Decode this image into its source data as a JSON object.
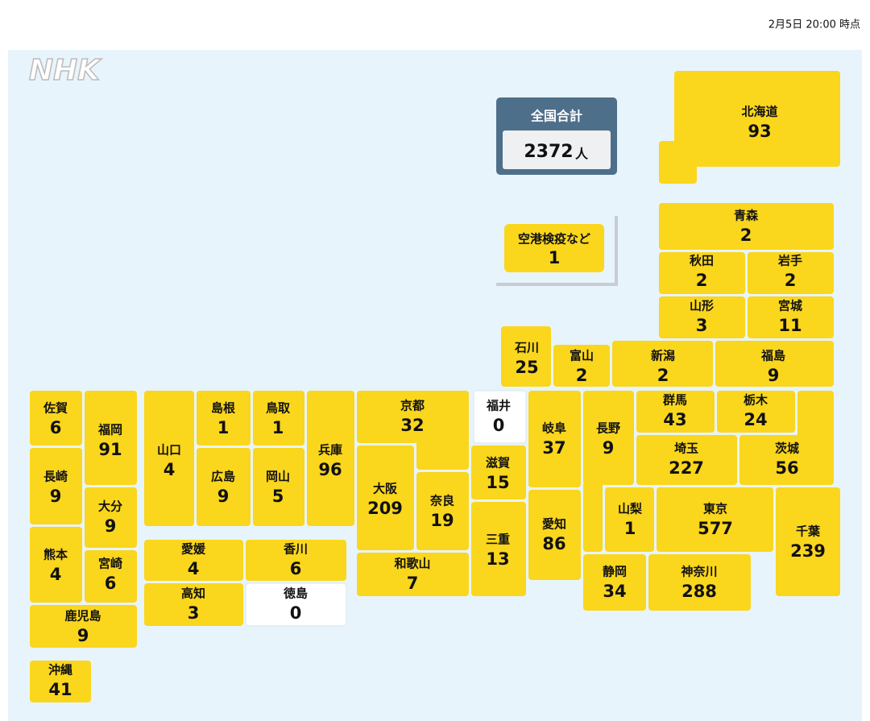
{
  "timestamp": "2月5日 20:00 時点",
  "logo": "NHK",
  "total": {
    "label": "全国合計",
    "value": 2372,
    "unit": "人"
  },
  "quarantine": {
    "name": "空港検疫など",
    "value": 1
  },
  "prefectures": [
    {
      "name": "北海道",
      "value": 93
    },
    {
      "name": "青森",
      "value": 2
    },
    {
      "name": "秋田",
      "value": 2
    },
    {
      "name": "岩手",
      "value": 2
    },
    {
      "name": "山形",
      "value": 3
    },
    {
      "name": "宮城",
      "value": 11
    },
    {
      "name": "新潟",
      "value": 2
    },
    {
      "name": "福島",
      "value": 9
    },
    {
      "name": "富山",
      "value": 2
    },
    {
      "name": "石川",
      "value": 25
    },
    {
      "name": "群馬",
      "value": 43
    },
    {
      "name": "栃木",
      "value": 24
    },
    {
      "name": "茨城",
      "value": 56
    },
    {
      "name": "埼玉",
      "value": 227
    },
    {
      "name": "千葉",
      "value": 239
    },
    {
      "name": "東京",
      "value": 577
    },
    {
      "name": "神奈川",
      "value": 288
    },
    {
      "name": "山梨",
      "value": 1
    },
    {
      "name": "長野",
      "value": 9
    },
    {
      "name": "静岡",
      "value": 34
    },
    {
      "name": "岐阜",
      "value": 37
    },
    {
      "name": "愛知",
      "value": 86
    },
    {
      "name": "福井",
      "value": 0
    },
    {
      "name": "滋賀",
      "value": 15
    },
    {
      "name": "三重",
      "value": 13
    },
    {
      "name": "京都",
      "value": 32
    },
    {
      "name": "大阪",
      "value": 209
    },
    {
      "name": "奈良",
      "value": 19
    },
    {
      "name": "和歌山",
      "value": 7
    },
    {
      "name": "兵庫",
      "value": 96
    },
    {
      "name": "鳥取",
      "value": 1
    },
    {
      "name": "岡山",
      "value": 5
    },
    {
      "name": "島根",
      "value": 1
    },
    {
      "name": "広島",
      "value": 9
    },
    {
      "name": "山口",
      "value": 4
    },
    {
      "name": "愛媛",
      "value": 4
    },
    {
      "name": "香川",
      "value": 6
    },
    {
      "name": "高知",
      "value": 3
    },
    {
      "name": "徳島",
      "value": 0
    },
    {
      "name": "佐賀",
      "value": 6
    },
    {
      "name": "福岡",
      "value": 91
    },
    {
      "name": "長崎",
      "value": 9
    },
    {
      "name": "大分",
      "value": 9
    },
    {
      "name": "熊本",
      "value": 4
    },
    {
      "name": "宮崎",
      "value": 6
    },
    {
      "name": "鹿児島",
      "value": 9
    },
    {
      "name": "沖縄",
      "value": 41
    }
  ]
}
